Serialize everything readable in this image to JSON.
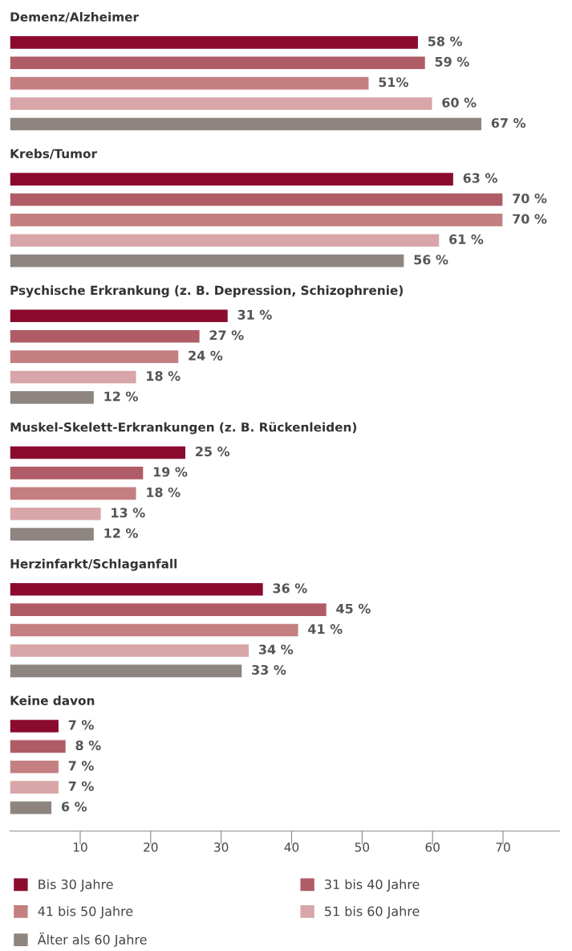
{
  "chart_data": {
    "type": "bar",
    "orientation": "horizontal",
    "categories": [
      "Demenz/Alzheimer",
      "Krebs/Tumor",
      "Psychische Erkrankung (z. B. Depression, Schizophrenie)",
      "Muskel-Skelett-Erkrankungen (z. B. Rückenleiden)",
      "Herzinfarkt/Schlaganfall",
      "Keine davon"
    ],
    "series": [
      {
        "name": "Bis 30 Jahre",
        "color": "#8a0b2e",
        "values": [
          58,
          63,
          31,
          25,
          36,
          7
        ],
        "value_labels": [
          "58 %",
          "63 %",
          "31 %",
          "25 %",
          "36 %",
          "7 %"
        ]
      },
      {
        "name": "31 bis 40 Jahre",
        "color": "#b05c66",
        "values": [
          59,
          70,
          27,
          19,
          45,
          8
        ],
        "value_labels": [
          "59 %",
          "70 %",
          "27 %",
          "19 %",
          "45 %",
          "8 %"
        ]
      },
      {
        "name": "41 bis 50 Jahre",
        "color": "#c47f80",
        "values": [
          51,
          70,
          24,
          18,
          41,
          7
        ],
        "value_labels": [
          "51%",
          "70 %",
          "24 %",
          "18 %",
          "41 %",
          "7 %"
        ]
      },
      {
        "name": "51 bis 60 Jahre",
        "color": "#d8a6a8",
        "values": [
          60,
          61,
          18,
          13,
          34,
          7
        ],
        "value_labels": [
          "60 %",
          "61 %",
          "18 %",
          "13 %",
          "34 %",
          "7 %"
        ]
      },
      {
        "name": "Älter als 60 Jahre",
        "color": "#8e8580",
        "values": [
          67,
          56,
          12,
          12,
          33,
          6
        ],
        "value_labels": [
          "67 %",
          "56 %",
          "12 %",
          "12 %",
          "33 %",
          "6 %"
        ]
      }
    ],
    "xlim": [
      0,
      78
    ],
    "xticks": [
      10,
      20,
      30,
      40,
      50,
      60,
      70
    ],
    "grid": false,
    "legend": "bottom"
  }
}
